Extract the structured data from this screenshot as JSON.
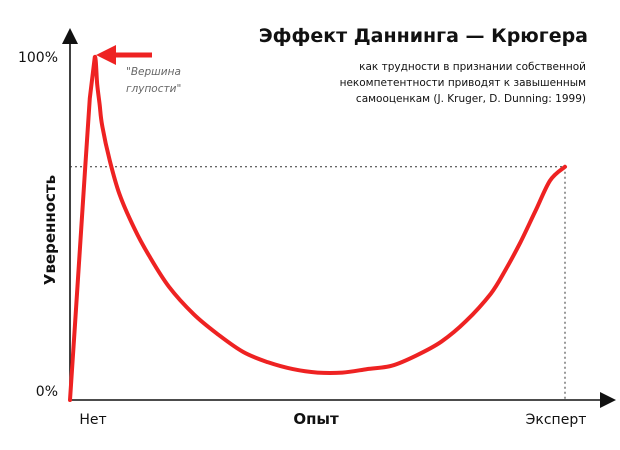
{
  "chart_data": {
    "type": "line",
    "title": "Эффект Даннинга — Крюгера",
    "subtitle_lines": [
      "как трудности в признании собственной",
      "некомпетентности приводят к завышенным",
      "самооценкам (J. Kruger, D. Dunning: 1999)"
    ],
    "xlabel": "Опыт",
    "ylabel": "Уверенность",
    "x_ticks": [
      "Нет",
      "Эксперт"
    ],
    "y_ticks": [
      "0%",
      "100%"
    ],
    "ylim": [
      0,
      100
    ],
    "xlim": [
      0,
      100
    ],
    "series": [
      {
        "color": "#ee2222",
        "x": [
          0,
          1,
          2,
          3,
          4,
          5,
          5.5,
          6,
          6.5,
          8,
          10,
          13,
          16,
          20,
          25,
          30,
          35,
          40,
          45,
          50,
          55,
          60,
          65,
          70,
          75,
          80,
          85,
          88,
          91,
          94,
          97,
          100
        ],
        "y": [
          0,
          22,
          44,
          66,
          88,
          100,
          92,
          86,
          80,
          70,
          60,
          50,
          42,
          33,
          25,
          19,
          14,
          11,
          9,
          8,
          8,
          9,
          10,
          13,
          17,
          23,
          31,
          38,
          46,
          55,
          64,
          68
        ]
      }
    ],
    "reference_y": 68,
    "annotation": {
      "text_lines": [
        "\"Вершина",
        "глупости\""
      ],
      "arrow_color": "#ee2222"
    },
    "grid": false,
    "legend": "none"
  }
}
